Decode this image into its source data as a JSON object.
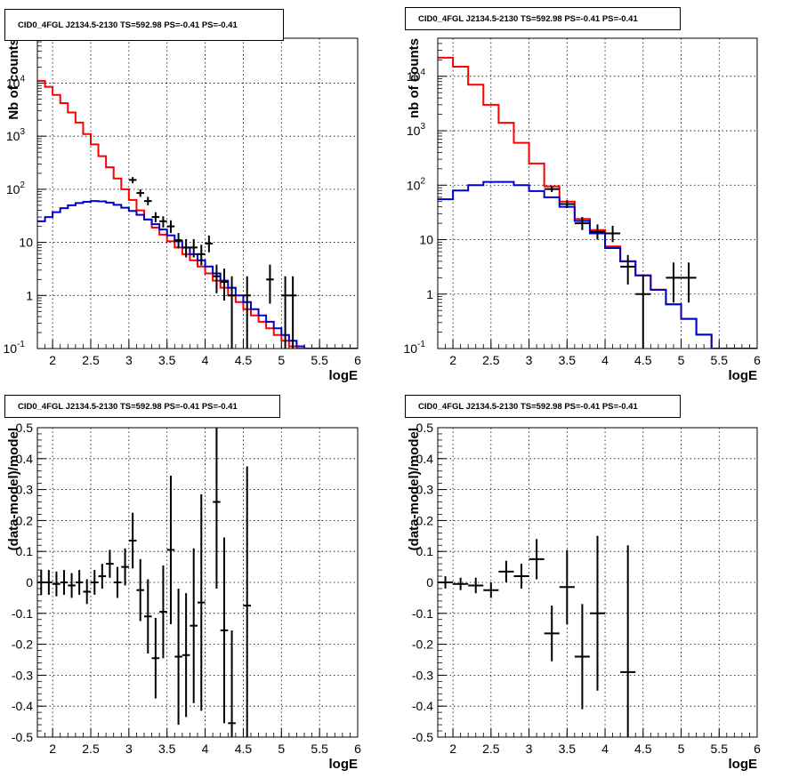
{
  "chart_data": [
    {
      "type": "line",
      "title": "CID0_4FGL J2134.5-2130 TS=592.98 PS=-0.41 PS=-0.41",
      "xlabel": "logE",
      "ylabel": "Nb of counts",
      "yscale": "log",
      "xlim": [
        1.8,
        6
      ],
      "ylim": [
        0.1,
        70000
      ],
      "xticks": [
        "2",
        "2.5",
        "3",
        "3.5",
        "4",
        "4.5",
        "5",
        "5.5",
        "6"
      ],
      "yticks": [
        "10^-1",
        "1",
        "10",
        "10^2",
        "10^3",
        "10^4"
      ],
      "grid": true,
      "series": [
        {
          "color": "#ff0000",
          "style": "step",
          "x": [
            1.8,
            1.9,
            2.0,
            2.1,
            2.2,
            2.3,
            2.4,
            2.5,
            2.6,
            2.7,
            2.8,
            2.9,
            3.0,
            3.1,
            3.2,
            3.3,
            3.4,
            3.5,
            3.6,
            3.7,
            3.8,
            3.9,
            4.0,
            4.1,
            4.2,
            4.3,
            4.4,
            4.5,
            4.6,
            4.7,
            4.8,
            4.9,
            5.0,
            5.1,
            5.2,
            5.3,
            5.4,
            5.5,
            5.6,
            5.7,
            5.8,
            5.9,
            6.0
          ],
          "values": [
            11000,
            8500,
            6000,
            4200,
            2800,
            1800,
            1100,
            700,
            420,
            260,
            160,
            100,
            63,
            40,
            27,
            19,
            14,
            10.5,
            8.0,
            6.0,
            4.6,
            3.5,
            2.6,
            1.9,
            1.4,
            1.0,
            0.75,
            0.55,
            0.42,
            0.32,
            0.24,
            0.18,
            0.14,
            0.11,
            0.09,
            0.09,
            0.09,
            0.09,
            0.09,
            0.09,
            0.09,
            0.09,
            0.09
          ]
        },
        {
          "color": "#0000cc",
          "style": "step",
          "x": [
            1.8,
            1.9,
            2.0,
            2.1,
            2.2,
            2.3,
            2.4,
            2.5,
            2.6,
            2.7,
            2.8,
            2.9,
            3.0,
            3.1,
            3.2,
            3.3,
            3.4,
            3.5,
            3.6,
            3.7,
            3.8,
            3.9,
            4.0,
            4.1,
            4.2,
            4.3,
            4.4,
            4.5,
            4.6,
            4.7,
            4.8,
            4.9,
            5.0,
            5.1,
            5.2,
            5.3,
            5.4,
            5.5,
            5.6,
            5.7,
            5.8,
            5.9,
            6.0
          ],
          "values": [
            25,
            30,
            37,
            44,
            50,
            55,
            58,
            60,
            59,
            56,
            51,
            45,
            39,
            33,
            27,
            22,
            17.5,
            13.5,
            10.5,
            8.0,
            6.0,
            4.6,
            3.5,
            2.6,
            1.9,
            1.4,
            1.0,
            0.75,
            0.55,
            0.42,
            0.32,
            0.24,
            0.18,
            0.14,
            0.11,
            0.09,
            0.09,
            0.09,
            0.09,
            0.09,
            0.09,
            0.09,
            0.09
          ]
        }
      ],
      "points": [
        {
          "x": 3.05,
          "y": 150,
          "ylo": 130,
          "yhi": 170
        },
        {
          "x": 3.15,
          "y": 85,
          "ylo": 72,
          "yhi": 100
        },
        {
          "x": 3.25,
          "y": 60,
          "ylo": 50,
          "yhi": 72
        },
        {
          "x": 3.35,
          "y": 30,
          "ylo": 24,
          "yhi": 37
        },
        {
          "x": 3.45,
          "y": 25,
          "ylo": 19,
          "yhi": 31
        },
        {
          "x": 3.55,
          "y": 20,
          "ylo": 15,
          "yhi": 26
        },
        {
          "x": 3.65,
          "y": 11,
          "ylo": 7.7,
          "yhi": 15
        },
        {
          "x": 3.75,
          "y": 8,
          "ylo": 5.2,
          "yhi": 11.5
        },
        {
          "x": 3.85,
          "y": 8,
          "ylo": 5.2,
          "yhi": 11.5
        },
        {
          "x": 3.95,
          "y": 6,
          "ylo": 3.7,
          "yhi": 9
        },
        {
          "x": 4.05,
          "y": 9.5,
          "ylo": 6.5,
          "yhi": 13.5
        },
        {
          "x": 4.15,
          "y": 2.3,
          "ylo": 1.1,
          "yhi": 3.8
        },
        {
          "x": 4.25,
          "y": 1.8,
          "ylo": 0.8,
          "yhi": 3.2
        },
        {
          "x": 4.35,
          "y": 1.0,
          "ylo": 0.1,
          "yhi": 2.3
        },
        {
          "x": 4.55,
          "y": 1.0,
          "ylo": 0.1,
          "yhi": 2.3
        },
        {
          "x": 4.85,
          "y": 2.0,
          "ylo": 0.7,
          "yhi": 3.8
        },
        {
          "x": 5.05,
          "y": 1.0,
          "ylo": 0.1,
          "yhi": 2.3
        },
        {
          "x": 5.15,
          "y": 1.0,
          "ylo": 0.1,
          "yhi": 2.3
        }
      ]
    },
    {
      "type": "line",
      "title": "CID0_4FGL J2134.5-2130 TS=592.98 PS=-0.41 PS=-0.41",
      "xlabel": "logE",
      "ylabel": "nb of counts",
      "yscale": "log",
      "xlim": [
        1.8,
        6
      ],
      "ylim": [
        0.1,
        50000
      ],
      "xticks": [
        "2",
        "2.5",
        "3",
        "3.5",
        "4",
        "4.5",
        "5",
        "5.5",
        "6"
      ],
      "yticks": [
        "10^-1",
        "1",
        "10",
        "10^2",
        "10^3",
        "10^4"
      ],
      "grid": true,
      "series": [
        {
          "color": "#ff0000",
          "style": "step",
          "x": [
            1.8,
            2.0,
            2.2,
            2.4,
            2.6,
            2.8,
            3.0,
            3.2,
            3.4,
            3.6,
            3.8,
            4.0,
            4.2,
            4.4,
            4.6,
            4.8,
            5.0,
            5.2,
            5.4,
            5.6,
            5.8,
            6.0
          ],
          "values": [
            22000,
            15000,
            7000,
            3000,
            1400,
            600,
            250,
            95,
            50,
            24,
            15,
            7.5,
            4.0,
            2.2,
            1.2,
            0.65,
            0.35,
            0.18,
            0.09,
            0.09,
            0.09,
            0.09
          ]
        },
        {
          "color": "#0000cc",
          "style": "step",
          "x": [
            1.8,
            2.0,
            2.2,
            2.4,
            2.6,
            2.8,
            3.0,
            3.2,
            3.4,
            3.6,
            3.8,
            4.0,
            4.2,
            4.4,
            4.6,
            4.8,
            5.0,
            5.2,
            5.4,
            5.6,
            5.8,
            6.0
          ],
          "values": [
            55,
            80,
            100,
            115,
            115,
            100,
            78,
            60,
            40,
            22,
            13,
            7.0,
            4.0,
            2.2,
            1.2,
            0.65,
            0.35,
            0.18,
            0.09,
            0.09,
            0.09,
            0.09
          ]
        }
      ],
      "points": [
        {
          "x": 3.3,
          "y": 85,
          "ylo": 75,
          "yhi": 96
        },
        {
          "x": 3.5,
          "y": 45,
          "ylo": 38,
          "yhi": 53
        },
        {
          "x": 3.7,
          "y": 20,
          "ylo": 15,
          "yhi": 26
        },
        {
          "x": 3.9,
          "y": 14,
          "ylo": 10,
          "yhi": 19
        },
        {
          "x": 4.1,
          "y": 13,
          "ylo": 9,
          "yhi": 18
        },
        {
          "x": 4.3,
          "y": 3.2,
          "ylo": 1.5,
          "yhi": 5.2
        },
        {
          "x": 4.5,
          "y": 1.0,
          "ylo": 0.1,
          "yhi": 2.3
        },
        {
          "x": 4.9,
          "y": 2.0,
          "ylo": 0.7,
          "yhi": 3.8
        },
        {
          "x": 5.1,
          "y": 2.0,
          "ylo": 0.7,
          "yhi": 3.8
        }
      ]
    },
    {
      "type": "scatter",
      "title": "CID0_4FGL J2134.5-2130 TS=592.98 PS=-0.41 PS=-0.41",
      "xlabel": "logE",
      "ylabel": "(data-model)/model",
      "xlim": [
        1.8,
        6
      ],
      "ylim": [
        -0.5,
        0.5
      ],
      "xticks": [
        "2",
        "2.5",
        "3",
        "3.5",
        "4",
        "4.5",
        "5",
        "5.5",
        "6"
      ],
      "yticks": [
        "-0.5",
        "-0.4",
        "-0.3",
        "-0.2",
        "-0.1",
        "0",
        "0.1",
        "0.2",
        "0.3",
        "0.4",
        "0.5"
      ],
      "grid": true,
      "points": [
        {
          "x": 1.85,
          "y": 0.0,
          "err": 0.04
        },
        {
          "x": 1.95,
          "y": 0.0,
          "err": 0.04
        },
        {
          "x": 2.05,
          "y": -0.005,
          "err": 0.04
        },
        {
          "x": 2.15,
          "y": 0.0,
          "err": 0.04
        },
        {
          "x": 2.25,
          "y": -0.01,
          "err": 0.04
        },
        {
          "x": 2.35,
          "y": 0.0,
          "err": 0.04
        },
        {
          "x": 2.45,
          "y": -0.03,
          "err": 0.04
        },
        {
          "x": 2.55,
          "y": 0.0,
          "err": 0.04
        },
        {
          "x": 2.65,
          "y": 0.02,
          "err": 0.04
        },
        {
          "x": 2.75,
          "y": 0.06,
          "err": 0.045
        },
        {
          "x": 2.85,
          "y": 0.0,
          "err": 0.05
        },
        {
          "x": 2.95,
          "y": 0.05,
          "err": 0.06
        },
        {
          "x": 3.05,
          "y": 0.135,
          "err": 0.09
        },
        {
          "x": 3.15,
          "y": -0.025,
          "err": 0.1
        },
        {
          "x": 3.25,
          "y": -0.11,
          "err": 0.12
        },
        {
          "x": 3.35,
          "y": -0.245,
          "err": 0.13
        },
        {
          "x": 3.45,
          "y": -0.095,
          "err": 0.15
        },
        {
          "x": 3.55,
          "y": 0.105,
          "err": 0.24
        },
        {
          "x": 3.65,
          "y": -0.24,
          "err": 0.22
        },
        {
          "x": 3.75,
          "y": -0.235,
          "err": 0.2
        },
        {
          "x": 3.85,
          "y": -0.14,
          "err": 0.25
        },
        {
          "x": 3.95,
          "y": -0.065,
          "err": 0.35
        },
        {
          "x": 4.15,
          "y": 0.26,
          "err": 0.28
        },
        {
          "x": 4.25,
          "y": -0.155,
          "err": 0.3
        },
        {
          "x": 4.35,
          "y": -0.455,
          "err": 0.3
        },
        {
          "x": 4.55,
          "y": -0.075,
          "err": 0.45
        }
      ]
    },
    {
      "type": "scatter",
      "title": "CID0_4FGL J2134.5-2130 TS=592.98 PS=-0.41 PS=-0.41",
      "xlabel": "logE",
      "ylabel": "(data-model)/model",
      "xlim": [
        1.8,
        6
      ],
      "ylim": [
        -0.5,
        0.5
      ],
      "xticks": [
        "2",
        "2.5",
        "3",
        "3.5",
        "4",
        "4.5",
        "5",
        "5.5",
        "6"
      ],
      "yticks": [
        "-0.5",
        "-0.4",
        "-0.3",
        "-0.2",
        "-0.1",
        "0",
        "0.1",
        "0.2",
        "0.3",
        "0.4",
        "0.5"
      ],
      "grid": true,
      "points": [
        {
          "x": 1.9,
          "y": 0.0,
          "err": 0.02
        },
        {
          "x": 2.1,
          "y": -0.005,
          "err": 0.02
        },
        {
          "x": 2.3,
          "y": -0.01,
          "err": 0.025
        },
        {
          "x": 2.5,
          "y": -0.025,
          "err": 0.025
        },
        {
          "x": 2.7,
          "y": 0.035,
          "err": 0.035
        },
        {
          "x": 2.9,
          "y": 0.02,
          "err": 0.04
        },
        {
          "x": 3.1,
          "y": 0.075,
          "err": 0.065
        },
        {
          "x": 3.3,
          "y": -0.165,
          "err": 0.09
        },
        {
          "x": 3.5,
          "y": -0.015,
          "err": 0.12
        },
        {
          "x": 3.7,
          "y": -0.24,
          "err": 0.17
        },
        {
          "x": 3.9,
          "y": -0.1,
          "err": 0.25
        },
        {
          "x": 4.3,
          "y": -0.29,
          "err": 0.41
        }
      ]
    }
  ]
}
